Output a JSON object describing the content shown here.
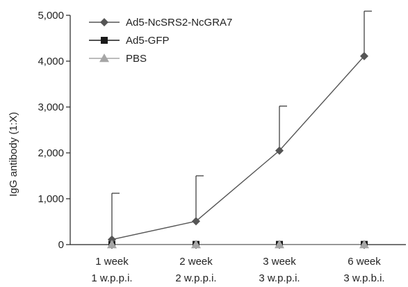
{
  "chart_data": {
    "type": "line",
    "title": "",
    "xlabel": "",
    "ylabel": "IgG antibody (1:X)",
    "ylim": [
      0,
      5000
    ],
    "y_ticks": [
      0,
      1000,
      2000,
      3000,
      4000,
      5000
    ],
    "y_tick_labels": [
      "0",
      "1,000",
      "2,000",
      "3,000",
      "4,000",
      "5,000"
    ],
    "categories": [
      [
        "1 week",
        "1 w.p.p.i."
      ],
      [
        "2 week",
        "2 w.p.p.i."
      ],
      [
        "3 week",
        "3 w.p.p.i."
      ],
      [
        "6 week",
        "3 w.p.b.i."
      ]
    ],
    "grid": false,
    "legend_position": "top-left",
    "series": [
      {
        "name": "Ad5-NcSRS2-NcGRA7",
        "marker": "diamond",
        "color": "#555555",
        "values": [
          110,
          510,
          2050,
          4110
        ],
        "error_upper": [
          1010,
          990,
          970,
          980
        ]
      },
      {
        "name": "Ad5-GFP",
        "marker": "square",
        "color": "#1a1a1a",
        "values": [
          5,
          5,
          5,
          5
        ],
        "error_upper": [
          0,
          0,
          0,
          0
        ]
      },
      {
        "name": "PBS",
        "marker": "triangle",
        "color": "#a6a6a6",
        "values": [
          0,
          0,
          0,
          0
        ],
        "error_upper": [
          0,
          0,
          0,
          0
        ]
      }
    ]
  }
}
